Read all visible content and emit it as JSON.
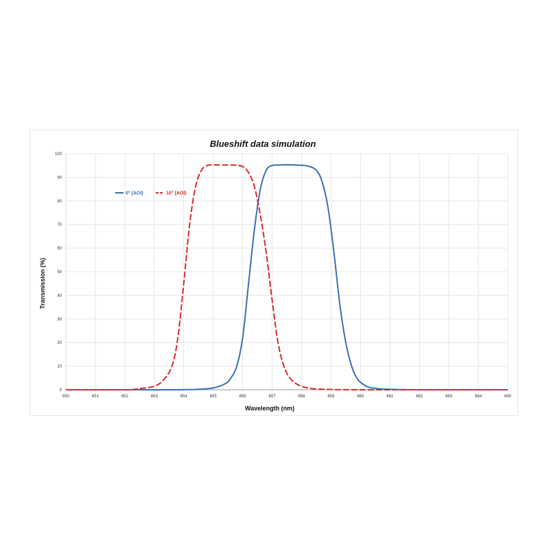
{
  "chart_data": {
    "type": "line",
    "title": "Blueshift data simulation",
    "xlabel": "Wavelength (nm)",
    "ylabel": "Transmission (%)",
    "xlim": [
      650,
      665
    ],
    "ylim": [
      0,
      100
    ],
    "x_ticks": [
      "650",
      "651",
      "652",
      "653",
      "654",
      "655",
      "656",
      "657",
      "658",
      "659",
      "660",
      "661",
      "662",
      "663",
      "664",
      "665"
    ],
    "y_ticks": [
      "0",
      "10",
      "20",
      "30",
      "40",
      "50",
      "60",
      "70",
      "80",
      "90",
      "100"
    ],
    "grid": true,
    "legend_position": "upper-left",
    "series": [
      {
        "name": "0° (AOI)",
        "color": "#3b6db0",
        "style": "solid",
        "x": [
          650,
          653.5,
          654.5,
          655.0,
          655.4,
          655.6,
          655.8,
          656.0,
          656.2,
          656.4,
          656.6,
          656.8,
          657.0,
          657.2,
          657.5,
          657.8,
          658.2,
          658.5,
          658.7,
          658.9,
          659.1,
          659.3,
          659.5,
          659.7,
          659.9,
          660.2,
          660.5,
          661.0,
          662.0,
          665
        ],
        "y": [
          0,
          0,
          0.2,
          0.8,
          2.5,
          5,
          10,
          22,
          45,
          68,
          85,
          93,
          95,
          95.2,
          95.3,
          95.2,
          94.8,
          93,
          88,
          77,
          58,
          36,
          20,
          10,
          4.5,
          1.5,
          0.6,
          0.2,
          0,
          0
        ]
      },
      {
        "name": "10° (AOI)",
        "color": "#d42a2a",
        "style": "dashed",
        "x": [
          650,
          652.0,
          652.5,
          653.0,
          653.3,
          653.6,
          653.8,
          654.0,
          654.2,
          654.4,
          654.6,
          654.8,
          655.0,
          655.3,
          655.7,
          656.0,
          656.2,
          656.4,
          656.6,
          656.8,
          657.0,
          657.2,
          657.4,
          657.6,
          657.9,
          658.3,
          658.8,
          660.0,
          665
        ],
        "y": [
          0,
          0,
          0.5,
          1.5,
          4,
          10,
          22,
          45,
          70,
          86,
          93,
          95,
          95.3,
          95.2,
          95.2,
          94.6,
          92,
          86,
          74,
          58,
          38,
          20,
          10,
          5,
          2,
          0.6,
          0.2,
          0,
          0
        ]
      }
    ]
  }
}
